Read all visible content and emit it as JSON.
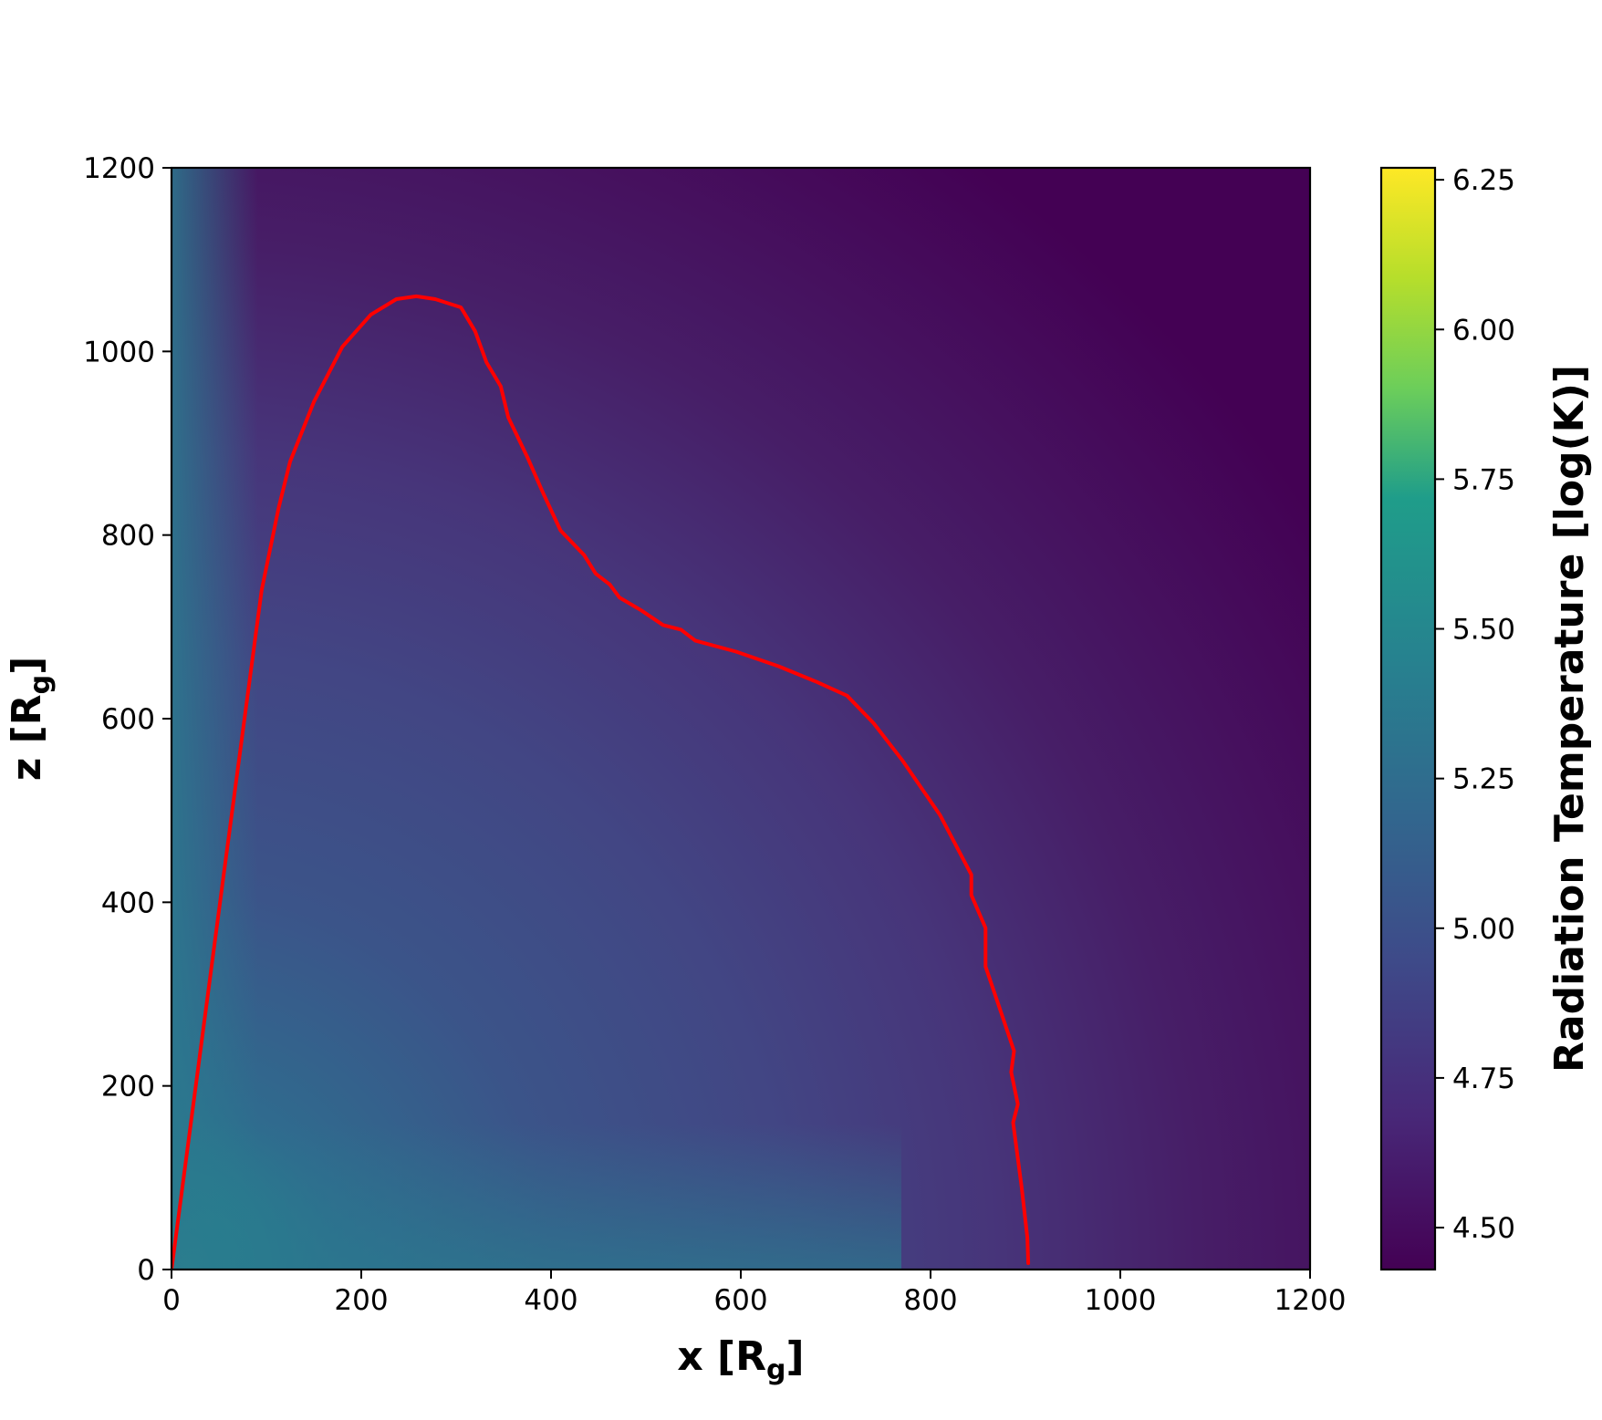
{
  "chart_data": {
    "type": "heatmap",
    "title": "",
    "xlabel": "x [R",
    "xlabel_sub": "g",
    "xlabel_close": "]",
    "ylabel": "z [R",
    "ylabel_sub": "g",
    "ylabel_close": "]",
    "xlim": [
      0,
      1200
    ],
    "ylim": [
      0,
      1200
    ],
    "x_ticks": [
      0,
      200,
      400,
      600,
      800,
      1000,
      1200
    ],
    "y_ticks": [
      0,
      200,
      400,
      600,
      800,
      1000,
      1200
    ],
    "x_tick_labels": [
      "0",
      "200",
      "400",
      "600",
      "800",
      "1000",
      "1200"
    ],
    "y_tick_labels": [
      "0",
      "200",
      "400",
      "600",
      "800",
      "1000",
      "1200"
    ],
    "grid": false,
    "colormap": "viridis",
    "colorbar": {
      "label": "Radiation Temperature [log(K)]",
      "range": [
        4.43,
        6.27
      ],
      "ticks": [
        4.5,
        4.75,
        5.0,
        5.25,
        5.5,
        5.75,
        6.0,
        6.25
      ],
      "tick_labels": [
        "4.50",
        "4.75",
        "5.00",
        "5.25",
        "5.50",
        "5.75",
        "6.00",
        "6.25"
      ]
    },
    "series": [
      {
        "color": "#ff0000",
        "x": [
          0,
          55,
          95,
          113,
          125,
          150,
          180,
          210,
          237,
          258,
          278,
          305,
          320,
          332,
          347,
          355,
          375,
          392,
          410,
          435,
          447,
          462,
          472,
          495,
          518,
          537,
          552,
          595,
          640,
          680,
          712,
          740,
          770,
          810,
          843,
          843,
          858,
          858,
          875,
          888,
          885,
          892,
          887,
          896,
          902,
          903
        ],
        "y": [
          0,
          430,
          740,
          830,
          880,
          945,
          1005,
          1040,
          1057,
          1060,
          1057,
          1048,
          1022,
          988,
          962,
          928,
          885,
          845,
          805,
          778,
          758,
          746,
          732,
          718,
          702,
          697,
          685,
          673,
          657,
          640,
          625,
          595,
          555,
          495,
          430,
          408,
          372,
          330,
          278,
          238,
          215,
          180,
          160,
          90,
          35,
          7
        ]
      }
    ]
  }
}
